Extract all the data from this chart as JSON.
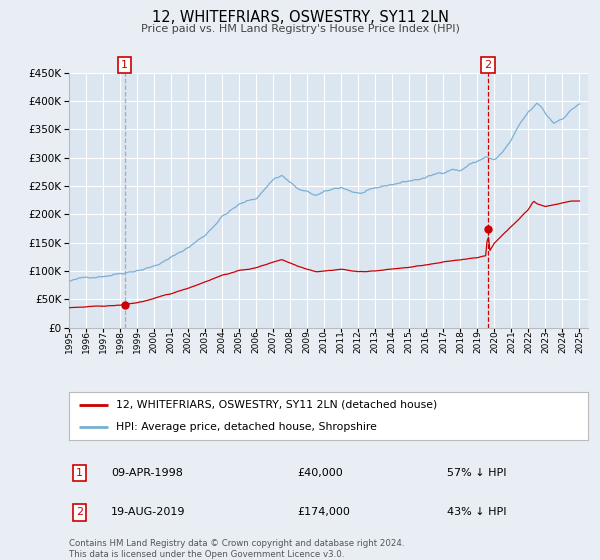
{
  "title": "12, WHITEFRIARS, OSWESTRY, SY11 2LN",
  "subtitle": "Price paid vs. HM Land Registry's House Price Index (HPI)",
  "legend_line1": "12, WHITEFRIARS, OSWESTRY, SY11 2LN (detached house)",
  "legend_line2": "HPI: Average price, detached house, Shropshire",
  "sale1_date": "09-APR-1998",
  "sale1_price": 40000,
  "sale1_hpi": "57% ↓ HPI",
  "sale2_date": "19-AUG-2019",
  "sale2_price": 174000,
  "sale2_hpi": "43% ↓ HPI",
  "footer1": "Contains HM Land Registry data © Crown copyright and database right 2024.",
  "footer2": "This data is licensed under the Open Government Licence v3.0.",
  "hpi_color": "#7ab0d4",
  "price_color": "#cc0000",
  "marker_color": "#cc0000",
  "vline1_color": "#aaaaaa",
  "vline2_color": "#cc0000",
  "bg_color": "#e8eef4",
  "plot_bg": "#dce6f0",
  "grid_color": "#ffffff",
  "legend_bg": "#ffffff",
  "ylim": [
    0,
    450000
  ],
  "xlim_start": 1995.0,
  "xlim_end": 2025.5,
  "sale1_x": 1998.27,
  "sale2_x": 2019.63,
  "hpi_anchors_t": [
    1995.0,
    1996.0,
    1997.0,
    1998.0,
    1999.0,
    2000.0,
    2001.0,
    2002.0,
    2003.0,
    2004.0,
    2005.0,
    2006.0,
    2007.0,
    2007.5,
    2008.5,
    2009.5,
    2010.5,
    2011.0,
    2012.0,
    2013.0,
    2014.5,
    2016.0,
    2017.0,
    2017.5,
    2018.0,
    2018.5,
    2019.0,
    2019.5,
    2020.0,
    2020.5,
    2021.0,
    2021.5,
    2022.0,
    2022.5,
    2022.8,
    2023.0,
    2023.5,
    2024.0,
    2024.5,
    2025.0
  ],
  "hpi_anchors_v": [
    82000,
    87000,
    93000,
    100000,
    108000,
    116000,
    130000,
    148000,
    170000,
    205000,
    225000,
    235000,
    270000,
    278000,
    252000,
    240000,
    248000,
    252000,
    242000,
    246000,
    257000,
    266000,
    275000,
    283000,
    280000,
    291000,
    296000,
    305000,
    298000,
    312000,
    332000,
    358000,
    378000,
    392000,
    385000,
    374000,
    358000,
    368000,
    383000,
    395000
  ],
  "price_anchors_t": [
    1995.0,
    1996.0,
    1997.0,
    1998.0,
    1998.27,
    1999.0,
    2000.0,
    2001.0,
    2002.0,
    2003.0,
    2004.0,
    2005.0,
    2006.0,
    2007.0,
    2007.5,
    2008.5,
    2009.5,
    2010.5,
    2011.0,
    2012.0,
    2013.0,
    2014.0,
    2015.0,
    2016.0,
    2017.0,
    2018.0,
    2019.0,
    2019.5,
    2019.625,
    2019.7,
    2020.0,
    2020.5,
    2021.0,
    2021.5,
    2022.0,
    2022.3,
    2022.5,
    2023.0,
    2023.5,
    2024.0,
    2024.5,
    2025.0
  ],
  "price_anchors_v": [
    35000,
    36000,
    37000,
    38500,
    40000,
    43000,
    50000,
    58000,
    68000,
    80000,
    92000,
    100000,
    105000,
    115000,
    120000,
    108000,
    100000,
    103000,
    105000,
    100000,
    102000,
    105000,
    108000,
    112000,
    116000,
    120000,
    125000,
    128000,
    174000,
    135000,
    150000,
    165000,
    180000,
    195000,
    210000,
    225000,
    220000,
    215000,
    218000,
    222000,
    225000,
    225000
  ]
}
